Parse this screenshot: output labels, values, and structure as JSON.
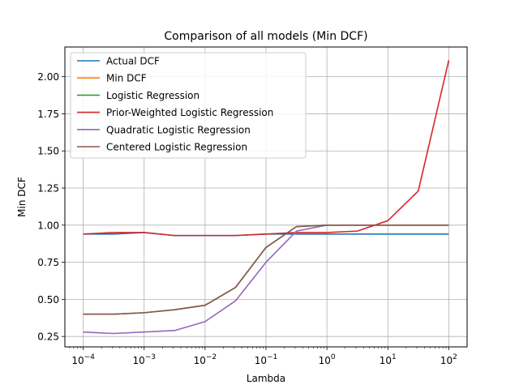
{
  "chart_data": {
    "type": "line",
    "title": "Comparison of all models (Min DCF)",
    "xlabel": "Lambda",
    "ylabel": "Min DCF",
    "xscale": "log",
    "xlim": [
      5e-05,
      200
    ],
    "ylim": [
      0.18,
      2.2
    ],
    "x_ticks": [
      "10−4",
      "10−3",
      "10−2",
      "10−1",
      "100",
      "101",
      "102"
    ],
    "x_tick_base": "10",
    "x_tick_exponents": [
      "−4",
      "−3",
      "−2",
      "−1",
      "0",
      "1",
      "2"
    ],
    "y_ticks": [
      "0.25",
      "0.50",
      "0.75",
      "1.00",
      "1.25",
      "1.50",
      "1.75",
      "2.00"
    ],
    "grid": true,
    "legend_position": "top-left",
    "x": [
      0.0001,
      0.000316,
      0.001,
      0.00316,
      0.01,
      0.0316,
      0.1,
      0.316,
      1,
      3.16,
      10,
      31.6,
      100
    ],
    "series": [
      {
        "name": "Actual DCF",
        "color": "#1f77b4",
        "values": [
          0.94,
          0.94,
          0.95,
          0.93,
          0.93,
          0.93,
          0.94,
          0.94,
          0.94,
          0.94,
          0.94,
          0.94,
          0.94
        ]
      },
      {
        "name": "Min DCF",
        "color": "#ff7f0e",
        "values": [
          null,
          null,
          null,
          null,
          null,
          null,
          null,
          null,
          null,
          null,
          null,
          null,
          null
        ]
      },
      {
        "name": "Logistic Regression",
        "color": "#2ca02c",
        "values": [
          0.4,
          0.4,
          0.41,
          0.43,
          0.46,
          0.58,
          0.85,
          0.99,
          1.0,
          1.0,
          1.0,
          1.0,
          1.0
        ]
      },
      {
        "name": "Prior-Weighted Logistic Regression",
        "color": "#d62728",
        "values": [
          0.94,
          0.95,
          0.95,
          0.93,
          0.93,
          0.93,
          0.94,
          0.95,
          0.95,
          0.96,
          1.03,
          1.23,
          2.11
        ]
      },
      {
        "name": "Quadratic Logistic Regression",
        "color": "#9467bd",
        "values": [
          0.28,
          0.27,
          0.28,
          0.29,
          0.35,
          0.49,
          0.75,
          0.96,
          1.0,
          1.0,
          1.0,
          1.0,
          1.0
        ]
      },
      {
        "name": "Centered Logistic Regression",
        "color": "#8c564b",
        "values": [
          0.4,
          0.4,
          0.41,
          0.43,
          0.46,
          0.58,
          0.85,
          0.99,
          1.0,
          1.0,
          1.0,
          1.0,
          1.0
        ]
      }
    ]
  }
}
